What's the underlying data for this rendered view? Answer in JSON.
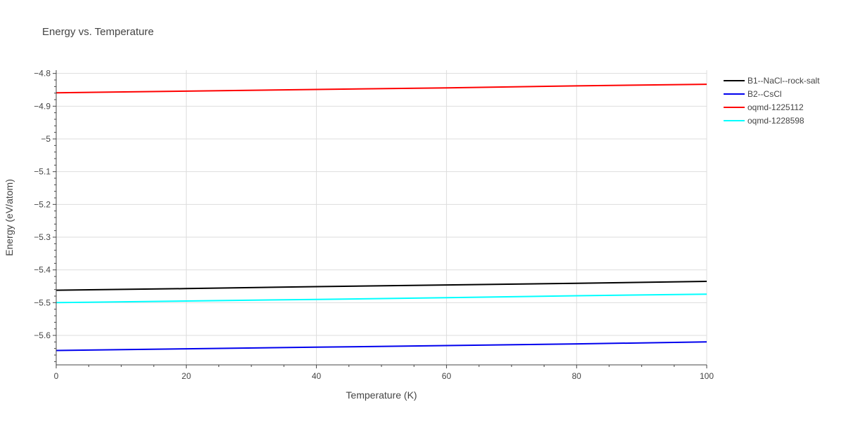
{
  "chart_data": {
    "type": "line",
    "title": "Energy vs. Temperature",
    "xlabel": "Temperature (K)",
    "ylabel": "Energy (eV/atom)",
    "xlim": [
      0,
      100
    ],
    "ylim": [
      -5.69,
      -4.79
    ],
    "x_ticks": [
      0,
      20,
      40,
      60,
      80,
      100
    ],
    "y_ticks": [
      -4.8,
      -4.9,
      -5,
      -5.1,
      -5.2,
      -5.3,
      -5.4,
      -5.5,
      -5.6
    ],
    "x_tick_labels": [
      "0",
      "20",
      "40",
      "60",
      "80",
      "100"
    ],
    "y_tick_labels": [
      "−4.8",
      "−4.9",
      "−5",
      "−5.1",
      "−5.2",
      "−5.3",
      "−5.4",
      "−5.5",
      "−5.6"
    ],
    "grid": true,
    "legend_position": "top-right",
    "series": [
      {
        "name": "B1--NaCl--rock-salt",
        "color": "#000000",
        "x": [
          0,
          20,
          40,
          60,
          80,
          100
        ],
        "y": [
          -5.462,
          -5.457,
          -5.451,
          -5.446,
          -5.441,
          -5.435
        ]
      },
      {
        "name": "B2--CsCl",
        "color": "#0000ee",
        "x": [
          0,
          20,
          40,
          60,
          80,
          100
        ],
        "y": [
          -5.646,
          -5.641,
          -5.636,
          -5.631,
          -5.626,
          -5.62
        ]
      },
      {
        "name": "oqmd-1225112",
        "color": "#ff0000",
        "x": [
          0,
          20,
          40,
          60,
          80,
          100
        ],
        "y": [
          -4.859,
          -4.854,
          -4.849,
          -4.844,
          -4.838,
          -4.833
        ]
      },
      {
        "name": "oqmd-1228598",
        "color": "#00ffff",
        "x": [
          0,
          20,
          40,
          60,
          80,
          100
        ],
        "y": [
          -5.5,
          -5.495,
          -5.49,
          -5.485,
          -5.479,
          -5.474
        ]
      }
    ]
  }
}
